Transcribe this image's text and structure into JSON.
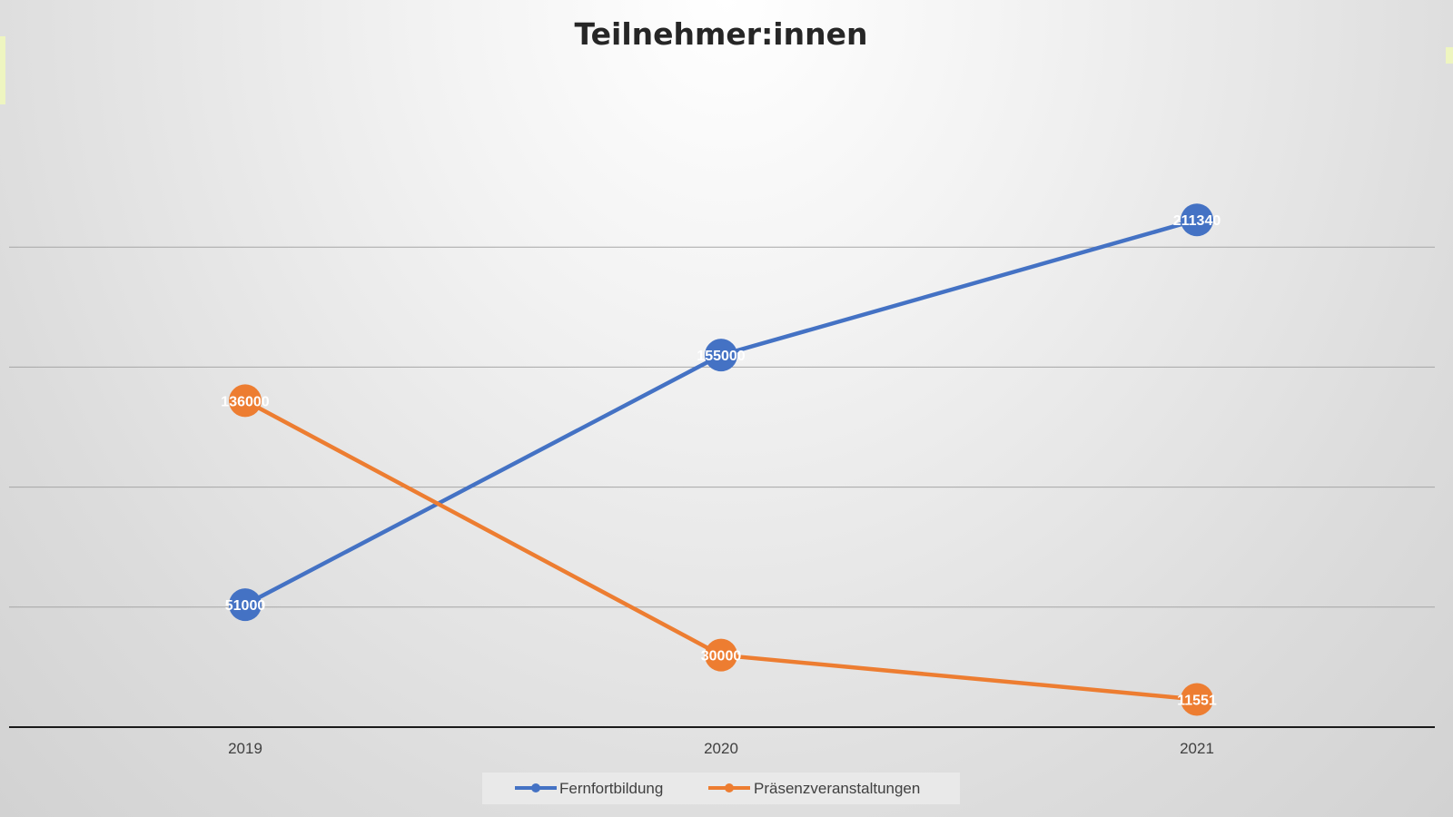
{
  "colors": {
    "series_1": "#4472c4",
    "series_2": "#ed7d31"
  },
  "chart_data": {
    "type": "line",
    "title": "Teilnehmer:innen",
    "categories": [
      "2019",
      "2020",
      "2021"
    ],
    "series": [
      {
        "name": "Fernfortbildung",
        "values": [
          51000,
          155000,
          211340
        ],
        "labels": [
          "51000",
          "155000",
          "211340"
        ]
      },
      {
        "name": "Präsenzveranstaltungen",
        "values": [
          136000,
          30000,
          11551
        ],
        "labels": [
          "136000",
          "30000",
          "11551"
        ]
      }
    ],
    "ylim": [
      0,
      250000
    ],
    "gridlines": [
      50000,
      100000,
      150000,
      200000
    ],
    "y_tick_labels_shown": false,
    "grid": true,
    "data_labels": true,
    "legend_position": "bottom"
  }
}
